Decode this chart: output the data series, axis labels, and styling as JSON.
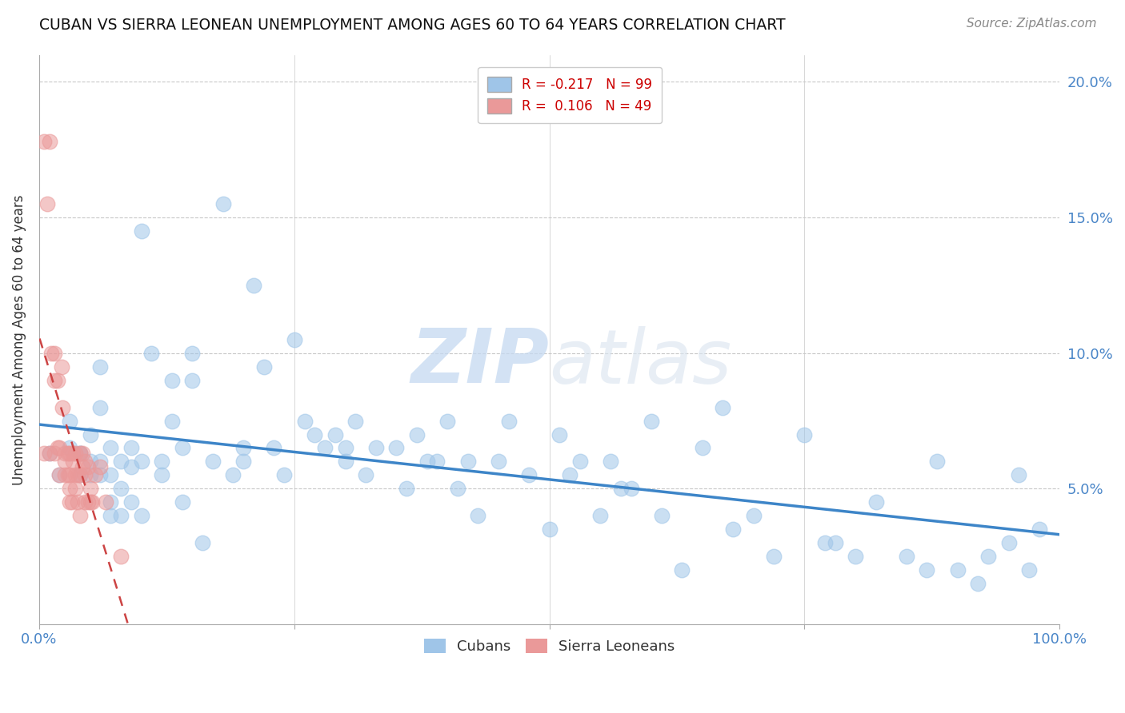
{
  "title": "CUBAN VS SIERRA LEONEAN UNEMPLOYMENT AMONG AGES 60 TO 64 YEARS CORRELATION CHART",
  "source": "Source: ZipAtlas.com",
  "ylabel": "Unemployment Among Ages 60 to 64 years",
  "xlim": [
    0,
    1.0
  ],
  "ylim": [
    0,
    0.21
  ],
  "xtick_positions": [
    0.0,
    0.25,
    0.5,
    0.75,
    1.0
  ],
  "xtick_labels": [
    "0.0%",
    "",
    "",
    "",
    "100.0%"
  ],
  "ytick_positions": [
    0.0,
    0.05,
    0.1,
    0.15,
    0.2
  ],
  "ytick_labels_right": [
    "",
    "5.0%",
    "10.0%",
    "15.0%",
    "20.0%"
  ],
  "cuban_R": -0.217,
  "cuban_N": 99,
  "sierra_R": 0.106,
  "sierra_N": 49,
  "cuban_color": "#9fc5e8",
  "sierra_color": "#ea9999",
  "cuban_line_color": "#3d85c8",
  "sierra_line_color": "#cc4444",
  "watermark_zip": "ZIP",
  "watermark_atlas": "atlas",
  "cuban_x": [
    0.01,
    0.02,
    0.03,
    0.03,
    0.04,
    0.04,
    0.04,
    0.05,
    0.05,
    0.05,
    0.06,
    0.06,
    0.06,
    0.06,
    0.07,
    0.07,
    0.07,
    0.07,
    0.08,
    0.08,
    0.08,
    0.09,
    0.09,
    0.09,
    0.1,
    0.1,
    0.1,
    0.11,
    0.12,
    0.12,
    0.13,
    0.13,
    0.14,
    0.14,
    0.15,
    0.15,
    0.16,
    0.17,
    0.18,
    0.19,
    0.2,
    0.2,
    0.21,
    0.22,
    0.23,
    0.24,
    0.25,
    0.26,
    0.27,
    0.28,
    0.29,
    0.3,
    0.3,
    0.31,
    0.32,
    0.33,
    0.35,
    0.36,
    0.37,
    0.38,
    0.39,
    0.4,
    0.41,
    0.42,
    0.43,
    0.45,
    0.46,
    0.48,
    0.5,
    0.51,
    0.52,
    0.53,
    0.55,
    0.56,
    0.57,
    0.58,
    0.6,
    0.61,
    0.63,
    0.65,
    0.67,
    0.68,
    0.7,
    0.72,
    0.75,
    0.77,
    0.78,
    0.8,
    0.82,
    0.85,
    0.87,
    0.88,
    0.9,
    0.92,
    0.93,
    0.95,
    0.96,
    0.97,
    0.98
  ],
  "cuban_y": [
    0.063,
    0.055,
    0.075,
    0.065,
    0.063,
    0.055,
    0.063,
    0.07,
    0.055,
    0.06,
    0.095,
    0.08,
    0.06,
    0.055,
    0.065,
    0.055,
    0.045,
    0.04,
    0.06,
    0.05,
    0.04,
    0.065,
    0.058,
    0.045,
    0.145,
    0.06,
    0.04,
    0.1,
    0.06,
    0.055,
    0.09,
    0.075,
    0.065,
    0.045,
    0.1,
    0.09,
    0.03,
    0.06,
    0.155,
    0.055,
    0.065,
    0.06,
    0.125,
    0.095,
    0.065,
    0.055,
    0.105,
    0.075,
    0.07,
    0.065,
    0.07,
    0.065,
    0.06,
    0.075,
    0.055,
    0.065,
    0.065,
    0.05,
    0.07,
    0.06,
    0.06,
    0.075,
    0.05,
    0.06,
    0.04,
    0.06,
    0.075,
    0.055,
    0.035,
    0.07,
    0.055,
    0.06,
    0.04,
    0.06,
    0.05,
    0.05,
    0.075,
    0.04,
    0.02,
    0.065,
    0.08,
    0.035,
    0.04,
    0.025,
    0.07,
    0.03,
    0.03,
    0.025,
    0.045,
    0.025,
    0.02,
    0.06,
    0.02,
    0.015,
    0.025,
    0.03,
    0.055,
    0.02,
    0.035
  ],
  "sierra_x": [
    0.005,
    0.005,
    0.008,
    0.01,
    0.01,
    0.012,
    0.015,
    0.015,
    0.015,
    0.018,
    0.018,
    0.02,
    0.02,
    0.022,
    0.023,
    0.025,
    0.025,
    0.025,
    0.028,
    0.028,
    0.03,
    0.03,
    0.03,
    0.03,
    0.032,
    0.033,
    0.033,
    0.035,
    0.035,
    0.035,
    0.038,
    0.038,
    0.04,
    0.04,
    0.04,
    0.042,
    0.042,
    0.045,
    0.045,
    0.045,
    0.048,
    0.048,
    0.05,
    0.05,
    0.052,
    0.055,
    0.06,
    0.065,
    0.08
  ],
  "sierra_y": [
    0.063,
    0.178,
    0.155,
    0.063,
    0.178,
    0.1,
    0.1,
    0.09,
    0.063,
    0.09,
    0.065,
    0.065,
    0.055,
    0.095,
    0.08,
    0.063,
    0.055,
    0.06,
    0.063,
    0.055,
    0.063,
    0.055,
    0.05,
    0.045,
    0.045,
    0.06,
    0.063,
    0.063,
    0.055,
    0.05,
    0.055,
    0.045,
    0.063,
    0.055,
    0.04,
    0.063,
    0.058,
    0.06,
    0.055,
    0.045,
    0.058,
    0.045,
    0.05,
    0.045,
    0.045,
    0.055,
    0.058,
    0.045,
    0.025
  ]
}
